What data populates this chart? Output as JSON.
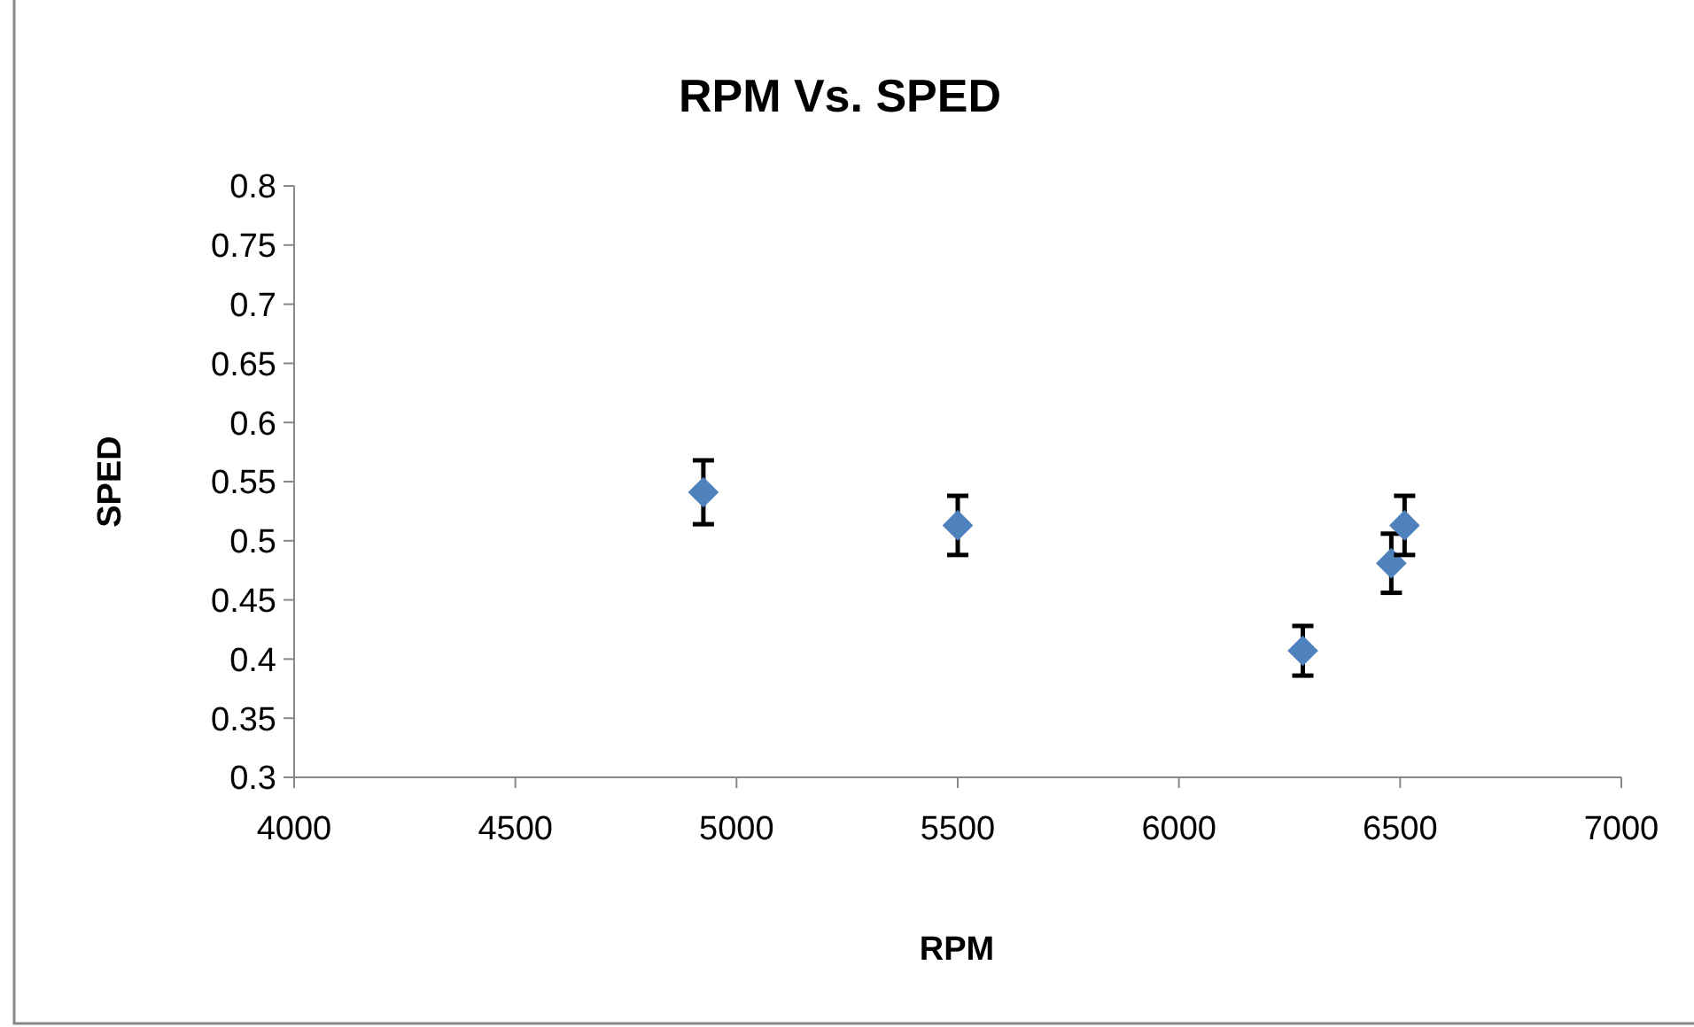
{
  "chart_data": {
    "type": "scatter",
    "title": "RPM Vs. SPED",
    "xlabel": "RPM",
    "ylabel": "SPED",
    "x": [
      4925,
      5500,
      6280,
      6480,
      6510
    ],
    "values": [
      0.541,
      0.513,
      0.407,
      0.481,
      0.513
    ],
    "errors": [
      0.027,
      0.025,
      0.021,
      0.025,
      0.025
    ],
    "color": "#4f81bd",
    "marker": "diamond",
    "grid": false,
    "xlim": [
      4000,
      7000
    ],
    "xticks": [
      4000,
      4500,
      5000,
      5500,
      6000,
      6500,
      7000
    ],
    "ylim": [
      0.3,
      0.8
    ],
    "yticks": [
      {
        "value": 0.3,
        "label": "0.3"
      },
      {
        "value": 0.35,
        "label": "0.35"
      },
      {
        "value": 0.4,
        "label": "0.4"
      },
      {
        "value": 0.45,
        "label": "0.45"
      },
      {
        "value": 0.5,
        "label": "0.5"
      },
      {
        "value": 0.55,
        "label": "0.55"
      },
      {
        "value": 0.6,
        "label": "0.6"
      },
      {
        "value": 0.65,
        "label": "0.65"
      },
      {
        "value": 0.7,
        "label": "0.7"
      },
      {
        "value": 0.75,
        "label": "0.75"
      },
      {
        "value": 0.8,
        "label": "0.8"
      }
    ]
  }
}
